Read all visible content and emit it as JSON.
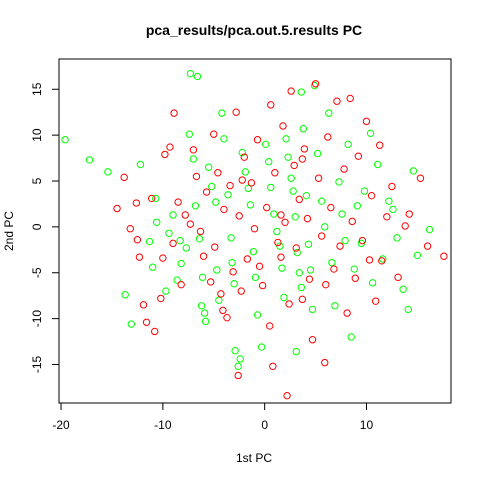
{
  "chart_data": {
    "type": "scatter",
    "title": "pca_results/pca.out.5.results PC",
    "xlabel": "1st PC",
    "ylabel": "2nd PC",
    "xlim": [
      -20.2,
      18.3
    ],
    "ylim": [
      -19.2,
      18.3
    ],
    "xticks": [
      -20,
      -10,
      0,
      10
    ],
    "xtick_labels": [
      "-20",
      "-10",
      "0",
      "10"
    ],
    "yticks": [
      -15,
      -10,
      -5,
      0,
      5,
      10,
      15
    ],
    "ytick_labels": [
      "-15",
      "-10",
      "-5",
      "0",
      "5",
      "10",
      "15"
    ],
    "marker": "open-circle",
    "grid": false,
    "series": [
      {
        "color": "#00ff00",
        "points": [
          [
            -19.6,
            9.5
          ],
          [
            -17.2,
            7.3
          ],
          [
            -15.4,
            6.0
          ],
          [
            -13.1,
            -10.6
          ],
          [
            -12.2,
            6.8
          ],
          [
            -11.3,
            -1.6
          ],
          [
            -10.6,
            0.5
          ],
          [
            -10.7,
            3.1
          ],
          [
            -9.7,
            -7.0
          ],
          [
            -9.4,
            -0.7
          ],
          [
            -9.0,
            1.3
          ],
          [
            -8.6,
            -5.8
          ],
          [
            -8.3,
            -1.5
          ],
          [
            -7.7,
            -2.3
          ],
          [
            -7.3,
            16.7
          ],
          [
            -6.6,
            16.4
          ],
          [
            -7.4,
            10.1
          ],
          [
            -7.0,
            7.4
          ],
          [
            -6.8,
            2.3
          ],
          [
            -6.4,
            -1.3
          ],
          [
            -6.1,
            -5.5
          ],
          [
            -6.2,
            -8.6
          ],
          [
            -5.9,
            -9.4
          ],
          [
            -5.8,
            -10.3
          ],
          [
            -5.5,
            6.5
          ],
          [
            -5.2,
            4.4
          ],
          [
            -4.8,
            2.7
          ],
          [
            -4.7,
            -4.7
          ],
          [
            -4.5,
            -8.0
          ],
          [
            -4.2,
            12.4
          ],
          [
            -4.0,
            9.6
          ],
          [
            -3.6,
            3.5
          ],
          [
            -3.3,
            -1.2
          ],
          [
            -3.2,
            -3.9
          ],
          [
            -3.0,
            -6.2
          ],
          [
            -2.9,
            -13.5
          ],
          [
            -2.6,
            -15.2
          ],
          [
            -2.4,
            -14.4
          ],
          [
            -2.2,
            8.1
          ],
          [
            -1.9,
            6.0
          ],
          [
            -1.6,
            4.2
          ],
          [
            -1.4,
            2.4
          ],
          [
            -1.1,
            -2.7
          ],
          [
            -0.9,
            -5.5
          ],
          [
            -0.7,
            -9.6
          ],
          [
            -0.3,
            -13.1
          ],
          [
            0.1,
            9.0
          ],
          [
            0.4,
            7.1
          ],
          [
            0.6,
            4.3
          ],
          [
            0.9,
            1.4
          ],
          [
            1.2,
            -0.5
          ],
          [
            1.5,
            -2.1
          ],
          [
            1.7,
            -4.5
          ],
          [
            1.9,
            -7.7
          ],
          [
            2.1,
            9.6
          ],
          [
            2.3,
            7.6
          ],
          [
            2.6,
            5.3
          ],
          [
            2.8,
            3.9
          ],
          [
            3.0,
            1.1
          ],
          [
            3.2,
            -2.8
          ],
          [
            3.4,
            -5.0
          ],
          [
            3.6,
            -6.6
          ],
          [
            3.1,
            -13.6
          ],
          [
            3.6,
            14.7
          ],
          [
            3.8,
            10.7
          ],
          [
            4.1,
            3.4
          ],
          [
            4.3,
            -1.9
          ],
          [
            4.5,
            -4.7
          ],
          [
            4.7,
            -9.0
          ],
          [
            4.9,
            15.4
          ],
          [
            5.2,
            8.0
          ],
          [
            5.6,
            2.8
          ],
          [
            5.9,
            0.0
          ],
          [
            6.3,
            12.4
          ],
          [
            6.6,
            -3.9
          ],
          [
            6.9,
            -8.6
          ],
          [
            7.3,
            4.9
          ],
          [
            7.6,
            1.4
          ],
          [
            7.9,
            -1.5
          ],
          [
            8.2,
            9.0
          ],
          [
            8.5,
            -12.0
          ],
          [
            8.8,
            -4.6
          ],
          [
            9.1,
            2.3
          ],
          [
            9.5,
            -1.8
          ],
          [
            9.8,
            3.9
          ],
          [
            10.4,
            10.2
          ],
          [
            10.6,
            -6.1
          ],
          [
            11.1,
            6.8
          ],
          [
            11.6,
            -3.5
          ],
          [
            12.2,
            2.8
          ],
          [
            12.6,
            1.9
          ],
          [
            13.0,
            -1.2
          ],
          [
            13.6,
            -6.8
          ],
          [
            14.1,
            -9.0
          ],
          [
            14.6,
            6.1
          ],
          [
            15.0,
            -3.1
          ],
          [
            16.2,
            -0.3
          ],
          [
            -13.7,
            -7.4
          ],
          [
            -11.0,
            -4.4
          ],
          [
            -8.2,
            -4.0
          ]
        ]
      },
      {
        "color": "#ff0000",
        "points": [
          [
            -14.5,
            2.0
          ],
          [
            -13.8,
            5.4
          ],
          [
            -13.2,
            -0.2
          ],
          [
            -12.6,
            2.6
          ],
          [
            -12.5,
            -1.4
          ],
          [
            -12.3,
            -3.3
          ],
          [
            -11.9,
            -8.5
          ],
          [
            -11.6,
            -10.4
          ],
          [
            -11.1,
            3.1
          ],
          [
            -10.8,
            -11.4
          ],
          [
            -10.2,
            -7.8
          ],
          [
            -10.0,
            -3.4
          ],
          [
            -9.8,
            7.9
          ],
          [
            -9.3,
            8.7
          ],
          [
            -9.0,
            -1.8
          ],
          [
            -8.9,
            12.4
          ],
          [
            -8.5,
            2.7
          ],
          [
            -8.2,
            -6.3
          ],
          [
            -7.8,
            1.3
          ],
          [
            -7.3,
            0.3
          ],
          [
            -7.0,
            8.4
          ],
          [
            -6.7,
            5.5
          ],
          [
            -6.3,
            -0.5
          ],
          [
            -6.0,
            -3.2
          ],
          [
            -5.7,
            3.8
          ],
          [
            -5.3,
            -6.0
          ],
          [
            -5.0,
            10.1
          ],
          [
            -4.9,
            -2.2
          ],
          [
            -4.6,
            5.9
          ],
          [
            -4.3,
            -7.3
          ],
          [
            -4.0,
            1.9
          ],
          [
            -3.7,
            -9.9
          ],
          [
            -3.4,
            4.5
          ],
          [
            -3.1,
            -4.9
          ],
          [
            -2.8,
            12.5
          ],
          [
            -2.6,
            -16.2
          ],
          [
            -2.5,
            1.2
          ],
          [
            -2.3,
            -7.0
          ],
          [
            -2.0,
            7.6
          ],
          [
            -1.7,
            -3.5
          ],
          [
            -1.3,
            4.8
          ],
          [
            -1.0,
            -0.2
          ],
          [
            -0.7,
            9.5
          ],
          [
            -0.5,
            -4.3
          ],
          [
            -0.2,
            -6.4
          ],
          [
            0.2,
            2.1
          ],
          [
            0.5,
            -10.8
          ],
          [
            0.6,
            13.3
          ],
          [
            0.8,
            -15.2
          ],
          [
            1.0,
            5.9
          ],
          [
            1.3,
            -1.7
          ],
          [
            1.6,
            -3.3
          ],
          [
            1.8,
            11.0
          ],
          [
            2.0,
            0.5
          ],
          [
            2.2,
            -18.4
          ],
          [
            2.4,
            -8.4
          ],
          [
            2.6,
            14.8
          ],
          [
            2.9,
            6.7
          ],
          [
            3.1,
            -2.3
          ],
          [
            3.4,
            3.0
          ],
          [
            3.7,
            -7.9
          ],
          [
            3.9,
            8.5
          ],
          [
            4.2,
            0.9
          ],
          [
            4.4,
            -5.7
          ],
          [
            4.7,
            -12.3
          ],
          [
            5.0,
            15.6
          ],
          [
            5.3,
            5.3
          ],
          [
            5.6,
            -1.0
          ],
          [
            5.9,
            -14.8
          ],
          [
            6.2,
            9.8
          ],
          [
            6.5,
            2.1
          ],
          [
            6.8,
            -4.6
          ],
          [
            7.1,
            13.7
          ],
          [
            7.4,
            -2.1
          ],
          [
            7.8,
            6.3
          ],
          [
            8.1,
            -9.4
          ],
          [
            8.4,
            14.0
          ],
          [
            8.6,
            0.6
          ],
          [
            8.9,
            -5.6
          ],
          [
            9.2,
            7.7
          ],
          [
            9.6,
            -1.5
          ],
          [
            10.0,
            11.5
          ],
          [
            10.3,
            -3.6
          ],
          [
            10.5,
            3.4
          ],
          [
            10.9,
            -8.1
          ],
          [
            11.3,
            8.9
          ],
          [
            11.5,
            -3.7
          ],
          [
            12.0,
            1.1
          ],
          [
            12.5,
            4.4
          ],
          [
            13.1,
            -5.5
          ],
          [
            13.8,
            0.1
          ],
          [
            14.2,
            1.4
          ],
          [
            15.3,
            5.3
          ],
          [
            16.0,
            -2.1
          ],
          [
            17.6,
            -3.2
          ],
          [
            -4.1,
            -9.1
          ],
          [
            -2.2,
            5.1
          ],
          [
            1.6,
            1.3
          ],
          [
            3.7,
            7.4
          ],
          [
            6.0,
            -6.3
          ]
        ]
      }
    ]
  }
}
